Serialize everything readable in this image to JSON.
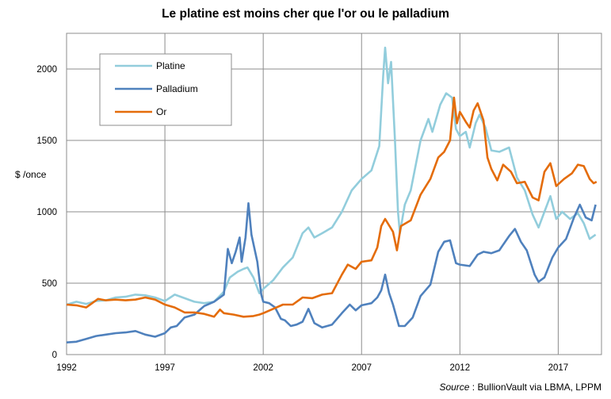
{
  "chart_data": {
    "type": "line",
    "title": "Le platine est moins cher que l'or ou le palladium",
    "ylabel": "$ /once",
    "xlabel": "",
    "xlim": [
      1992,
      2019.2
    ],
    "ylim": [
      0,
      2250
    ],
    "x_ticks": [
      1992,
      1997,
      2002,
      2007,
      2012,
      2017
    ],
    "y_ticks": [
      0,
      500,
      1000,
      1500,
      2000
    ],
    "grid": true,
    "legend_position": "top-left",
    "source_label": "Source",
    "source_text": " : BullionVault via LBMA, LPPM",
    "series": [
      {
        "name": "Platine",
        "color": "#92cddc",
        "points": [
          [
            1992,
            350
          ],
          [
            1992.5,
            370
          ],
          [
            1993,
            355
          ],
          [
            1993.5,
            375
          ],
          [
            1994,
            380
          ],
          [
            1994.5,
            400
          ],
          [
            1995,
            405
          ],
          [
            1995.5,
            420
          ],
          [
            1996,
            415
          ],
          [
            1996.5,
            400
          ],
          [
            1997,
            375
          ],
          [
            1997.5,
            420
          ],
          [
            1998,
            395
          ],
          [
            1998.5,
            370
          ],
          [
            1999,
            360
          ],
          [
            1999.5,
            370
          ],
          [
            2000,
            440
          ],
          [
            2000.3,
            540
          ],
          [
            2000.7,
            580
          ],
          [
            2001,
            600
          ],
          [
            2001.2,
            610
          ],
          [
            2001.5,
            540
          ],
          [
            2001.8,
            430
          ],
          [
            2002,
            460
          ],
          [
            2002.5,
            520
          ],
          [
            2003,
            610
          ],
          [
            2003.5,
            680
          ],
          [
            2004,
            850
          ],
          [
            2004.3,
            890
          ],
          [
            2004.6,
            820
          ],
          [
            2005,
            850
          ],
          [
            2005.5,
            890
          ],
          [
            2006,
            1000
          ],
          [
            2006.5,
            1150
          ],
          [
            2007,
            1230
          ],
          [
            2007.5,
            1290
          ],
          [
            2007.9,
            1460
          ],
          [
            2008.1,
            1950
          ],
          [
            2008.2,
            2150
          ],
          [
            2008.35,
            1900
          ],
          [
            2008.5,
            2050
          ],
          [
            2008.7,
            1500
          ],
          [
            2008.85,
            1000
          ],
          [
            2008.95,
            850
          ],
          [
            2009.2,
            1050
          ],
          [
            2009.5,
            1150
          ],
          [
            2010,
            1500
          ],
          [
            2010.4,
            1650
          ],
          [
            2010.6,
            1560
          ],
          [
            2011,
            1750
          ],
          [
            2011.3,
            1830
          ],
          [
            2011.6,
            1800
          ],
          [
            2011.8,
            1580
          ],
          [
            2012,
            1530
          ],
          [
            2012.3,
            1560
          ],
          [
            2012.5,
            1450
          ],
          [
            2012.8,
            1620
          ],
          [
            2013,
            1680
          ],
          [
            2013.3,
            1590
          ],
          [
            2013.6,
            1430
          ],
          [
            2014,
            1420
          ],
          [
            2014.5,
            1450
          ],
          [
            2014.9,
            1240
          ],
          [
            2015.3,
            1150
          ],
          [
            2015.7,
            980
          ],
          [
            2016,
            890
          ],
          [
            2016.3,
            1000
          ],
          [
            2016.6,
            1110
          ],
          [
            2016.9,
            950
          ],
          [
            2017.2,
            1000
          ],
          [
            2017.6,
            950
          ],
          [
            2018,
            990
          ],
          [
            2018.3,
            920
          ],
          [
            2018.6,
            810
          ],
          [
            2018.9,
            840
          ]
        ]
      },
      {
        "name": "Palladium",
        "color": "#4f81bd",
        "points": [
          [
            1992,
            85
          ],
          [
            1992.5,
            90
          ],
          [
            1993,
            110
          ],
          [
            1993.5,
            130
          ],
          [
            1994,
            140
          ],
          [
            1994.5,
            150
          ],
          [
            1995,
            155
          ],
          [
            1995.5,
            165
          ],
          [
            1996,
            140
          ],
          [
            1996.5,
            125
          ],
          [
            1997,
            150
          ],
          [
            1997.3,
            190
          ],
          [
            1997.6,
            200
          ],
          [
            1998,
            260
          ],
          [
            1998.5,
            280
          ],
          [
            1999,
            340
          ],
          [
            1999.5,
            370
          ],
          [
            2000,
            420
          ],
          [
            2000.2,
            740
          ],
          [
            2000.4,
            640
          ],
          [
            2000.6,
            720
          ],
          [
            2000.8,
            820
          ],
          [
            2000.9,
            650
          ],
          [
            2001.1,
            820
          ],
          [
            2001.25,
            1060
          ],
          [
            2001.4,
            840
          ],
          [
            2001.7,
            650
          ],
          [
            2001.9,
            420
          ],
          [
            2002,
            370
          ],
          [
            2002.3,
            360
          ],
          [
            2002.6,
            330
          ],
          [
            2002.9,
            250
          ],
          [
            2003.1,
            240
          ],
          [
            2003.4,
            200
          ],
          [
            2003.7,
            210
          ],
          [
            2004,
            230
          ],
          [
            2004.3,
            320
          ],
          [
            2004.6,
            220
          ],
          [
            2005,
            190
          ],
          [
            2005.5,
            210
          ],
          [
            2006,
            290
          ],
          [
            2006.4,
            350
          ],
          [
            2006.7,
            310
          ],
          [
            2007,
            345
          ],
          [
            2007.5,
            360
          ],
          [
            2007.8,
            400
          ],
          [
            2008,
            450
          ],
          [
            2008.2,
            560
          ],
          [
            2008.4,
            430
          ],
          [
            2008.6,
            350
          ],
          [
            2008.9,
            200
          ],
          [
            2009.2,
            200
          ],
          [
            2009.6,
            260
          ],
          [
            2010,
            410
          ],
          [
            2010.5,
            490
          ],
          [
            2010.9,
            720
          ],
          [
            2011.2,
            790
          ],
          [
            2011.5,
            800
          ],
          [
            2011.8,
            640
          ],
          [
            2012,
            630
          ],
          [
            2012.5,
            620
          ],
          [
            2012.9,
            700
          ],
          [
            2013.2,
            720
          ],
          [
            2013.6,
            710
          ],
          [
            2014,
            730
          ],
          [
            2014.5,
            830
          ],
          [
            2014.8,
            880
          ],
          [
            2015.1,
            790
          ],
          [
            2015.4,
            730
          ],
          [
            2015.8,
            560
          ],
          [
            2016,
            510
          ],
          [
            2016.3,
            540
          ],
          [
            2016.7,
            680
          ],
          [
            2017,
            750
          ],
          [
            2017.4,
            810
          ],
          [
            2017.8,
            960
          ],
          [
            2018.1,
            1050
          ],
          [
            2018.4,
            960
          ],
          [
            2018.7,
            940
          ],
          [
            2018.9,
            1050
          ]
        ]
      },
      {
        "name": "Or",
        "color": "#e46c0a",
        "points": [
          [
            1992,
            350
          ],
          [
            1992.5,
            345
          ],
          [
            1993,
            330
          ],
          [
            1993.3,
            360
          ],
          [
            1993.6,
            390
          ],
          [
            1994,
            380
          ],
          [
            1994.5,
            385
          ],
          [
            1995,
            380
          ],
          [
            1995.5,
            385
          ],
          [
            1996,
            400
          ],
          [
            1996.5,
            385
          ],
          [
            1997,
            350
          ],
          [
            1997.5,
            330
          ],
          [
            1998,
            295
          ],
          [
            1998.5,
            295
          ],
          [
            1999,
            285
          ],
          [
            1999.5,
            265
          ],
          [
            1999.8,
            315
          ],
          [
            2000,
            290
          ],
          [
            2000.5,
            280
          ],
          [
            2001,
            265
          ],
          [
            2001.5,
            270
          ],
          [
            2001.8,
            280
          ],
          [
            2002,
            290
          ],
          [
            2002.5,
            320
          ],
          [
            2003,
            350
          ],
          [
            2003.5,
            350
          ],
          [
            2004,
            400
          ],
          [
            2004.5,
            395
          ],
          [
            2005,
            420
          ],
          [
            2005.5,
            430
          ],
          [
            2006,
            560
          ],
          [
            2006.3,
            630
          ],
          [
            2006.7,
            600
          ],
          [
            2007,
            650
          ],
          [
            2007.5,
            660
          ],
          [
            2007.8,
            750
          ],
          [
            2008,
            900
          ],
          [
            2008.2,
            950
          ],
          [
            2008.6,
            860
          ],
          [
            2008.8,
            730
          ],
          [
            2009,
            900
          ],
          [
            2009.5,
            940
          ],
          [
            2010,
            1120
          ],
          [
            2010.5,
            1230
          ],
          [
            2010.9,
            1380
          ],
          [
            2011.2,
            1420
          ],
          [
            2011.5,
            1500
          ],
          [
            2011.7,
            1800
          ],
          [
            2011.85,
            1620
          ],
          [
            2012,
            1700
          ],
          [
            2012.3,
            1630
          ],
          [
            2012.5,
            1590
          ],
          [
            2012.7,
            1710
          ],
          [
            2012.9,
            1760
          ],
          [
            2013.2,
            1640
          ],
          [
            2013.4,
            1380
          ],
          [
            2013.6,
            1300
          ],
          [
            2013.9,
            1220
          ],
          [
            2014.2,
            1330
          ],
          [
            2014.6,
            1280
          ],
          [
            2014.9,
            1200
          ],
          [
            2015.3,
            1210
          ],
          [
            2015.7,
            1100
          ],
          [
            2016,
            1080
          ],
          [
            2016.3,
            1280
          ],
          [
            2016.6,
            1340
          ],
          [
            2016.9,
            1180
          ],
          [
            2017.3,
            1230
          ],
          [
            2017.7,
            1270
          ],
          [
            2018,
            1330
          ],
          [
            2018.3,
            1320
          ],
          [
            2018.6,
            1230
          ],
          [
            2018.8,
            1200
          ],
          [
            2018.95,
            1210
          ]
        ]
      }
    ]
  }
}
